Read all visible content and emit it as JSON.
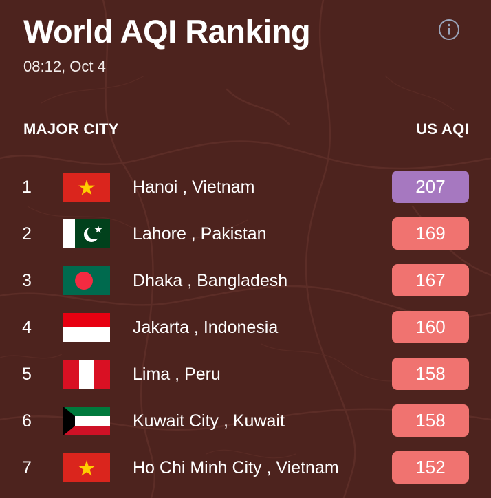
{
  "header": {
    "title": "World AQI Ranking",
    "timestamp": "08:12, Oct 4",
    "info_icon": "info-circle-icon"
  },
  "table": {
    "city_header": "MAJOR CITY",
    "aqi_header": "US AQI"
  },
  "colors": {
    "background": "#4d231e",
    "aqi_unhealthy": "#f07370",
    "aqi_very_unhealthy": "#a678c0"
  },
  "rows": [
    {
      "rank": "1",
      "city": "Hanoi , Vietnam",
      "aqi": "207",
      "flag": "vietnam-flag-icon",
      "level": "very_unhealthy"
    },
    {
      "rank": "2",
      "city": "Lahore , Pakistan",
      "aqi": "169",
      "flag": "pakistan-flag-icon",
      "level": "unhealthy"
    },
    {
      "rank": "3",
      "city": "Dhaka , Bangladesh",
      "aqi": "167",
      "flag": "bangladesh-flag-icon",
      "level": "unhealthy"
    },
    {
      "rank": "4",
      "city": "Jakarta , Indonesia",
      "aqi": "160",
      "flag": "indonesia-flag-icon",
      "level": "unhealthy"
    },
    {
      "rank": "5",
      "city": "Lima , Peru",
      "aqi": "158",
      "flag": "peru-flag-icon",
      "level": "unhealthy"
    },
    {
      "rank": "6",
      "city": "Kuwait City , Kuwait",
      "aqi": "158",
      "flag": "kuwait-flag-icon",
      "level": "unhealthy"
    },
    {
      "rank": "7",
      "city": "Ho Chi Minh City , Vietnam",
      "aqi": "152",
      "flag": "vietnam-flag-icon",
      "level": "unhealthy"
    }
  ]
}
